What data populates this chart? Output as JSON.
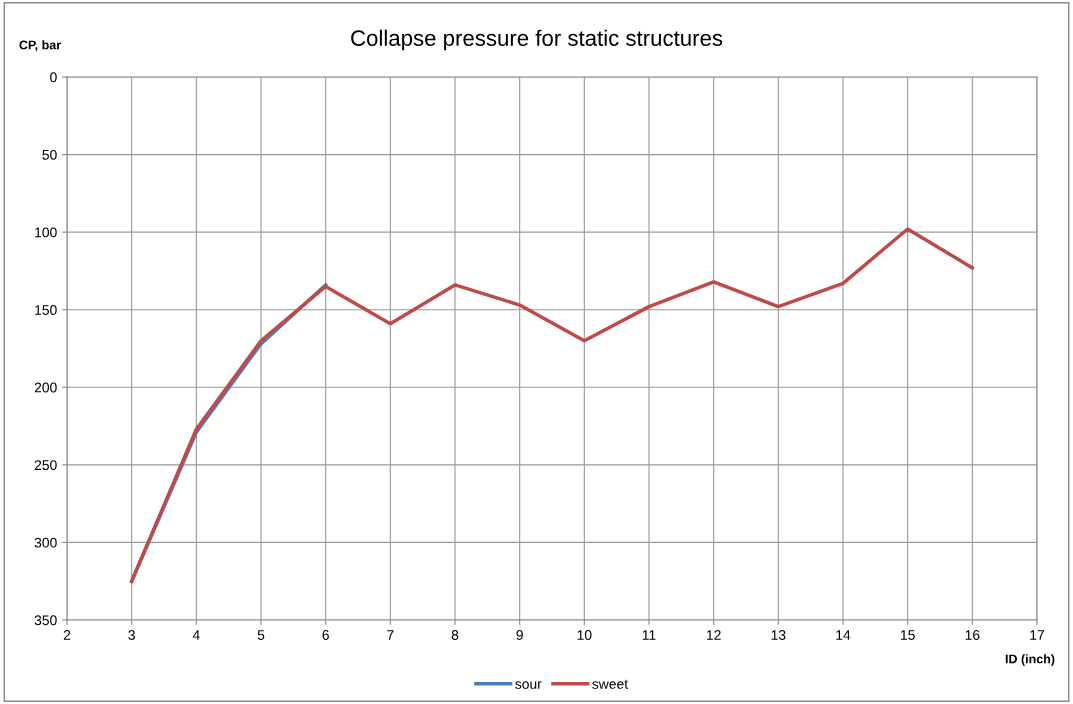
{
  "chart_data": {
    "type": "line",
    "title": "Collapse pressure for static structures",
    "xlabel": "ID (inch)",
    "ylabel": "CP, bar",
    "x": [
      3,
      4,
      5,
      6,
      7,
      8,
      9,
      10,
      11,
      12,
      13,
      14,
      15,
      16
    ],
    "series": [
      {
        "name": "sour",
        "color": "#4a7ebb",
        "values": [
          325,
          229,
          172,
          134,
          null,
          null,
          null,
          null,
          null,
          null,
          null,
          null,
          null,
          null
        ]
      },
      {
        "name": "sweet",
        "color": "#be4b48",
        "values": [
          325,
          227,
          170,
          135,
          159,
          134,
          147,
          170,
          148,
          132,
          148,
          133,
          98,
          123
        ]
      }
    ],
    "xlim": [
      2,
      17
    ],
    "xticks": [
      2,
      3,
      4,
      5,
      6,
      7,
      8,
      9,
      10,
      11,
      12,
      13,
      14,
      15,
      16,
      17
    ],
    "ylim": [
      350,
      0
    ],
    "yticks": [
      0,
      50,
      100,
      150,
      200,
      250,
      300,
      350
    ],
    "grid": true,
    "legend": "bottom",
    "marker": "none",
    "line_style": "solid"
  }
}
